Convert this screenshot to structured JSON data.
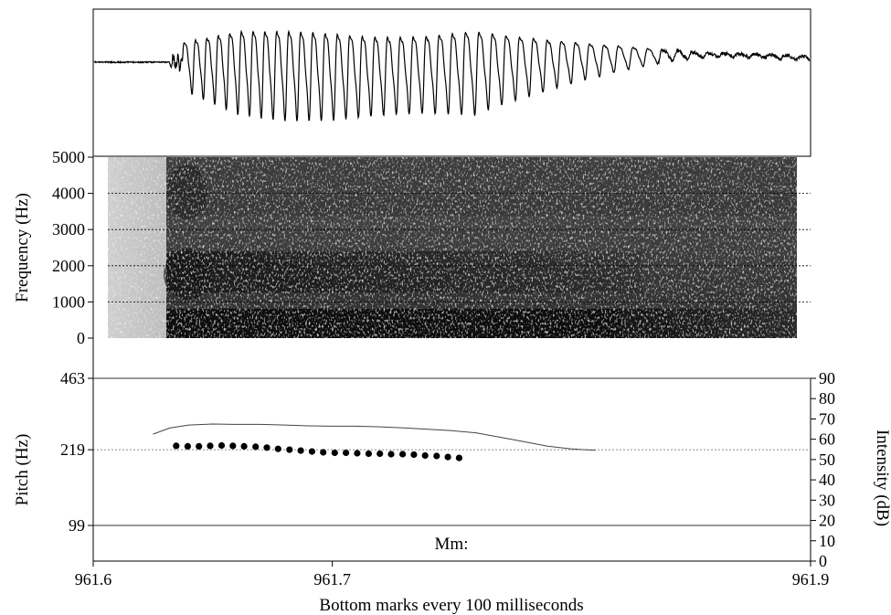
{
  "chart_data": [
    {
      "type": "line",
      "panel": "waveform",
      "xlim": [
        961.6,
        961.9
      ]
    },
    {
      "type": "heatmap",
      "panel": "spectrogram",
      "ylabel": "Frequency (Hz)",
      "yticks": [
        "0",
        "1000",
        "2000",
        "3000",
        "4000",
        "5000"
      ],
      "ylim": [
        0,
        5000
      ],
      "xlim": [
        961.6,
        961.9
      ],
      "grid": true
    },
    {
      "type": "scatter",
      "panel": "pitch-intensity",
      "ylabel_left": "Pitch (Hz)",
      "ylabel_right": "Intensity (dB)",
      "pitch_ticks": [
        "99",
        "219",
        "463"
      ],
      "pitch_scale": "log",
      "pitch_ylim": [
        99,
        463
      ],
      "intensity_ticks": [
        "0",
        "10",
        "20",
        "30",
        "40",
        "50",
        "60",
        "70",
        "80",
        "90"
      ],
      "intensity_ylim": [
        0,
        90
      ],
      "xlim": [
        961.6,
        961.9
      ],
      "x_ticks": [
        "961.6",
        "961.7",
        "961.9"
      ],
      "xlabel": "Bottom marks every 100 milliseconds",
      "annotation": "Mm:",
      "series": [
        {
          "role": "pitch-points",
          "x": [
            961.6347,
            961.6395,
            961.6442,
            961.6489,
            961.6537,
            961.6584,
            961.6631,
            961.6679,
            961.6726,
            961.6773,
            961.6821,
            961.6868,
            961.6915,
            961.6962,
            961.701,
            961.7057,
            961.7104,
            961.7152,
            961.7199,
            961.7246,
            961.7294,
            961.7341,
            961.7388,
            961.7436,
            961.7483,
            961.753
          ],
          "y": [
            228,
            227,
            227,
            228,
            229,
            228,
            227,
            226,
            224,
            221,
            219,
            217,
            215,
            213,
            212,
            212,
            211,
            210,
            210,
            209,
            209,
            208,
            206,
            205,
            203,
            201
          ]
        },
        {
          "role": "intensity-line",
          "x": [
            961.625,
            961.632,
            961.64,
            961.65,
            961.66,
            961.67,
            961.68,
            961.69,
            961.7,
            961.71,
            961.72,
            961.73,
            961.74,
            961.75,
            961.76,
            961.77,
            961.78,
            961.79,
            961.8,
            961.81
          ],
          "y": [
            62.5,
            65.5,
            67.0,
            67.5,
            67.3,
            67.3,
            67.0,
            66.6,
            66.4,
            66.4,
            66.1,
            65.6,
            64.9,
            64.2,
            63.2,
            61.0,
            58.8,
            56.6,
            55.2,
            54.6
          ]
        }
      ]
    }
  ]
}
